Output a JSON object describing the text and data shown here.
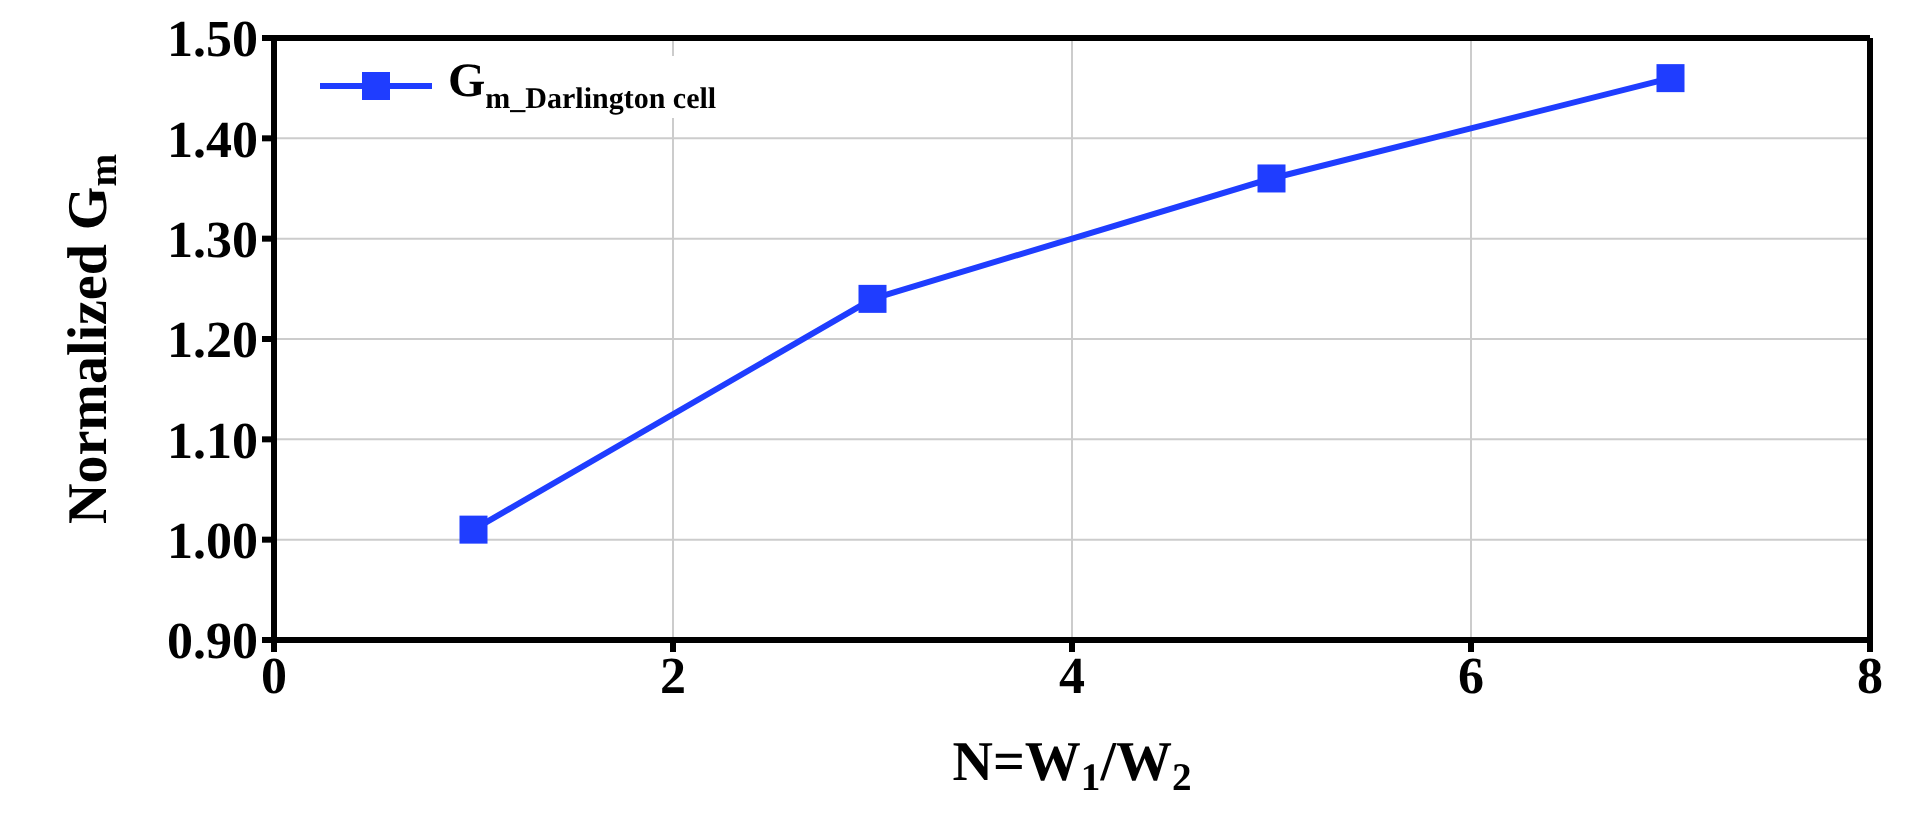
{
  "chart_data": {
    "type": "line",
    "xlabel": "N=W$_{1}$/W$_{2}$",
    "ylabel": "Normalized G$_{m}$",
    "x": [
      1,
      3,
      5,
      7
    ],
    "series": [
      {
        "name": "G$_{m_Darlington cell}$",
        "color": "#1f3dff",
        "values": [
          1.01,
          1.24,
          1.36,
          1.46
        ]
      }
    ],
    "xlim": [
      0,
      8
    ],
    "xticks": [
      0,
      2,
      4,
      6,
      8
    ],
    "ylim": [
      0.9,
      1.5
    ],
    "yticks": [
      {
        "value": 0.9,
        "label": "0.90"
      },
      {
        "value": 1.0,
        "label": "1.00"
      },
      {
        "value": 1.1,
        "label": "1.10"
      },
      {
        "value": 1.2,
        "label": "1.20"
      },
      {
        "value": 1.3,
        "label": "1.30"
      },
      {
        "value": 1.4,
        "label": "1.40"
      },
      {
        "value": 1.5,
        "label": "1.50"
      }
    ],
    "grid": true,
    "legend": "top left",
    "marker": "square",
    "line_style": "solid"
  }
}
